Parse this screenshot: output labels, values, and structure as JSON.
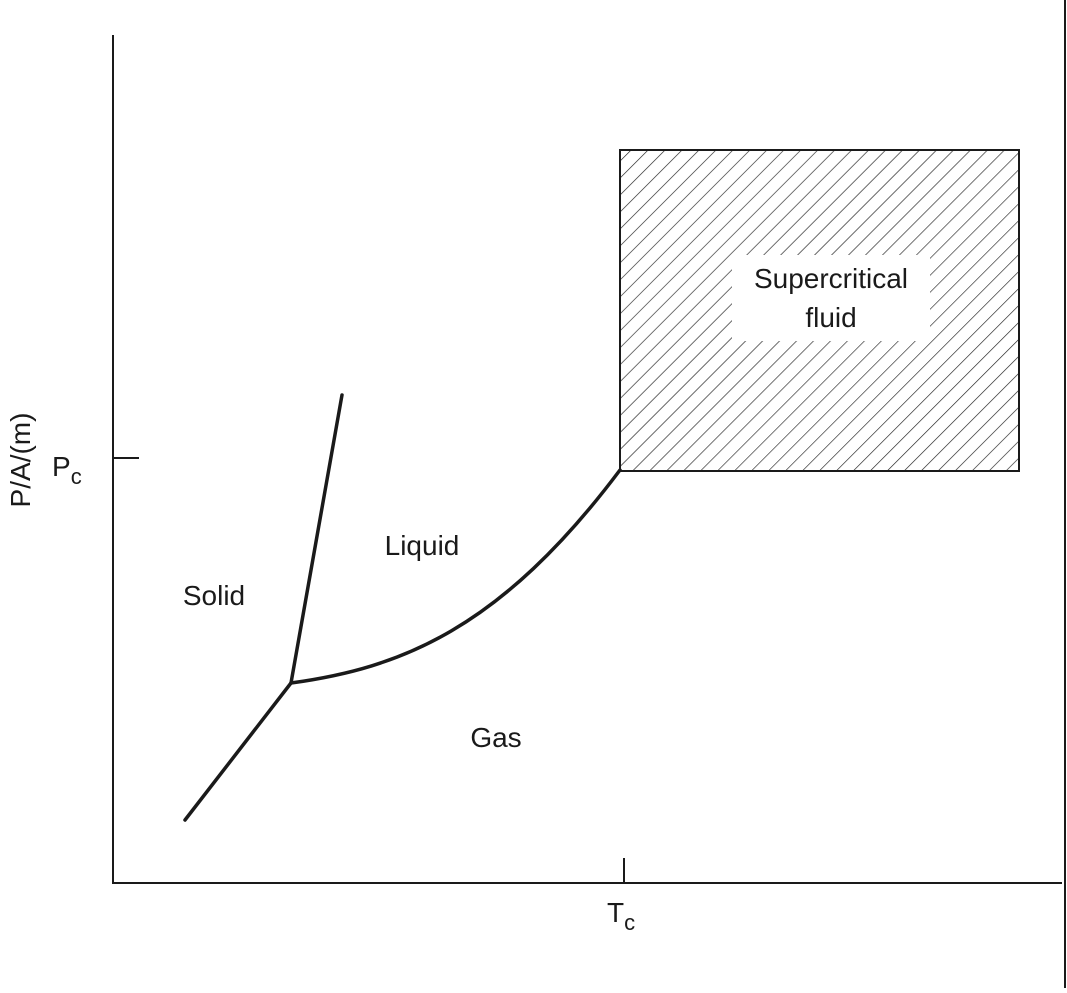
{
  "diagram": {
    "y_axis_label": "P/A/(m)",
    "y_tick": {
      "main": "P",
      "sub": "c"
    },
    "x_tick": {
      "main": "T",
      "sub": "c"
    },
    "regions": {
      "solid": "Solid",
      "liquid": "Liquid",
      "gas": "Gas",
      "supercritical": [
        "Supercritical",
        "fluid"
      ]
    }
  }
}
